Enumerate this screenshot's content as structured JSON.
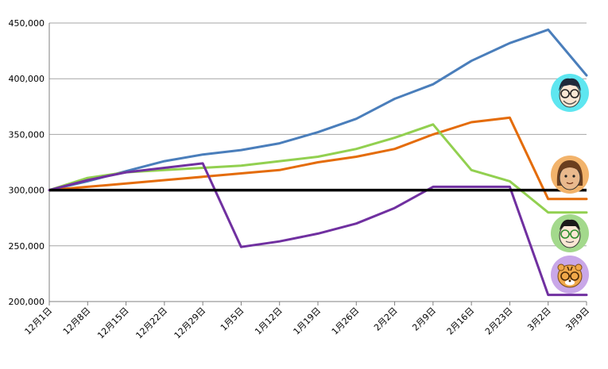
{
  "chart_data": {
    "type": "line",
    "title": "",
    "xlabel": "",
    "ylabel": "",
    "ylim": [
      200000,
      450000
    ],
    "ytick_values": [
      200000,
      250000,
      300000,
      350000,
      400000,
      450000
    ],
    "ytick_labels": [
      "200,000",
      "250,000",
      "300,000",
      "350,000",
      "400,000",
      "450,000"
    ],
    "categories": [
      "12月1日",
      "12月8日",
      "12月15日",
      "12月22日",
      "12月29日",
      "1月5日",
      "1月12日",
      "1月19日",
      "1月26日",
      "2月2日",
      "2月9日",
      "2月16日",
      "2月23日",
      "3月2日",
      "3月9日"
    ],
    "grid": true,
    "legend": "avatars-right",
    "baseline": {
      "value": 300000,
      "color": "#000000"
    },
    "series": [
      {
        "color": "#4a7ebb",
        "avatar": "man-glasses-dark-hair-icon",
        "values": [
          300000,
          308000,
          317000,
          326000,
          332000,
          336000,
          342000,
          352000,
          364000,
          382000,
          395000,
          416000,
          432000,
          444000,
          403000
        ]
      },
      {
        "color": "#e46c0a",
        "avatar": "woman-brown-hair-icon",
        "values": [
          300000,
          303000,
          306000,
          309000,
          312000,
          315000,
          318000,
          325000,
          330000,
          337000,
          350000,
          361000,
          365000,
          292000,
          292000
        ]
      },
      {
        "color": "#92d050",
        "avatar": "man-green-glasses-icon",
        "values": [
          300000,
          311000,
          316000,
          318000,
          320000,
          322000,
          326000,
          330000,
          337000,
          347000,
          359000,
          318000,
          308000,
          280000,
          280000
        ]
      },
      {
        "color": "#7030a0",
        "avatar": "tiger-icon",
        "values": [
          300000,
          309000,
          316000,
          320000,
          324000,
          249000,
          254000,
          261000,
          270000,
          284000,
          303000,
          303000,
          303000,
          206000,
          206000
        ]
      }
    ]
  }
}
